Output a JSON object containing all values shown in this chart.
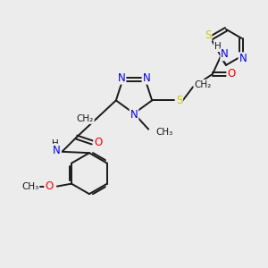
{
  "bg_color": "#ececec",
  "bond_color": "#1a1a1a",
  "N_color": "#0000ee",
  "S_color": "#cccc00",
  "O_color": "#ff0000",
  "C_color": "#1a1a1a",
  "figsize": [
    3.0,
    3.0
  ],
  "dpi": 100,
  "xlim": [
    0,
    10
  ],
  "ylim": [
    0,
    10
  ]
}
